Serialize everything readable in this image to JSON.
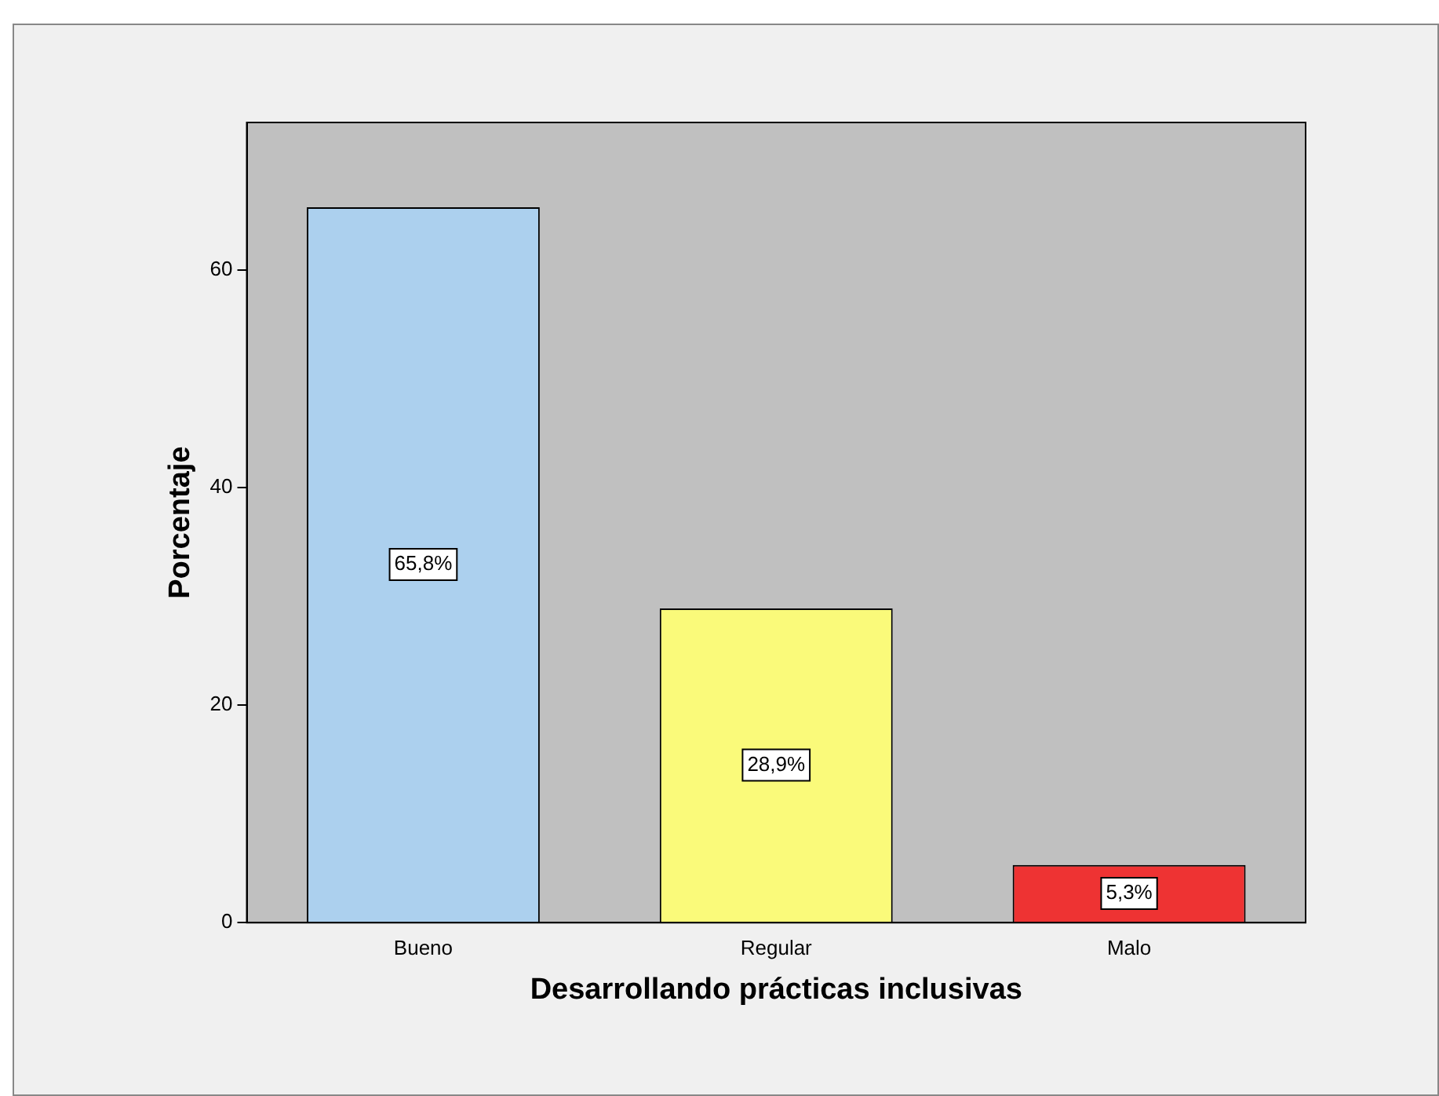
{
  "chart_data": {
    "type": "bar",
    "xlabel": "Desarrollando prácticas inclusivas",
    "ylabel": "Porcentaje",
    "categories": [
      "Bueno",
      "Regular",
      "Malo"
    ],
    "values": [
      65.8,
      28.9,
      5.3
    ],
    "colors": [
      "#acd0ee",
      "#fafa7a",
      "#ee3333"
    ],
    "value_labels": [
      "65,8%",
      "28,9%",
      "5,3%"
    ],
    "ylim": [
      0,
      73.6
    ],
    "yticks": [
      0,
      20,
      40,
      60
    ],
    "grid": false,
    "legend": false
  }
}
